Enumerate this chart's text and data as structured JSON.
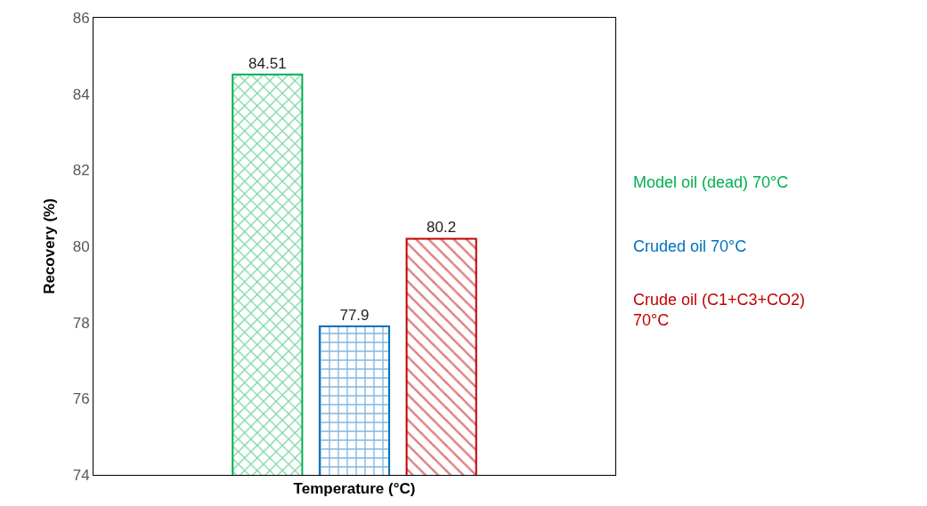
{
  "chart_data": {
    "type": "bar",
    "xlabel": "Temperature (°C)",
    "ylabel": "Recovery (%)",
    "categories": [
      null
    ],
    "series": [
      {
        "name": "Model oil (dead) 70°C",
        "color": "#00b050",
        "values": [
          84.51
        ]
      },
      {
        "name": "Cruded oil 70°C",
        "color": "#0070c0",
        "values": [
          77.9
        ]
      },
      {
        "name": "Crude oil (C1+C3+CO2) 70°C",
        "color": "#c00000",
        "values": [
          80.2
        ]
      }
    ],
    "ylim": [
      74,
      86
    ],
    "yticks": [
      74,
      76,
      78,
      80,
      82,
      84,
      86
    ],
    "data_labels": true,
    "grid": false,
    "legend": "right"
  }
}
